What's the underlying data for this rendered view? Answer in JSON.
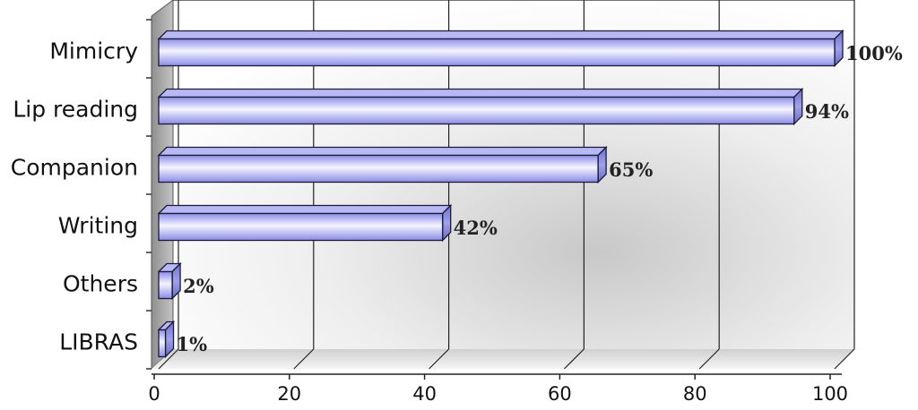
{
  "chart_data": {
    "type": "bar",
    "orientation": "horizontal",
    "style": "3d",
    "categories": [
      "Mimicry",
      "Lip reading",
      "Companion",
      "Writing",
      "Others",
      "LIBRAS"
    ],
    "values": [
      100,
      94,
      65,
      42,
      2,
      1
    ],
    "data_labels": [
      "100%",
      "94%",
      "65%",
      "42%",
      "2%",
      "1%"
    ],
    "x_ticks": [
      "0",
      "20",
      "40",
      "60",
      "80",
      "100"
    ],
    "xlim": [
      0,
      100
    ],
    "grid": true,
    "legend": "none",
    "colors": {
      "bar_face": "#9a9cf0",
      "bar_highlight": "#f2f2ff",
      "bar_end": "#7f82d6",
      "bar_outline": "#1a1a3a",
      "wall": "#b9b9b9",
      "floor": "#dcdcdc"
    }
  }
}
